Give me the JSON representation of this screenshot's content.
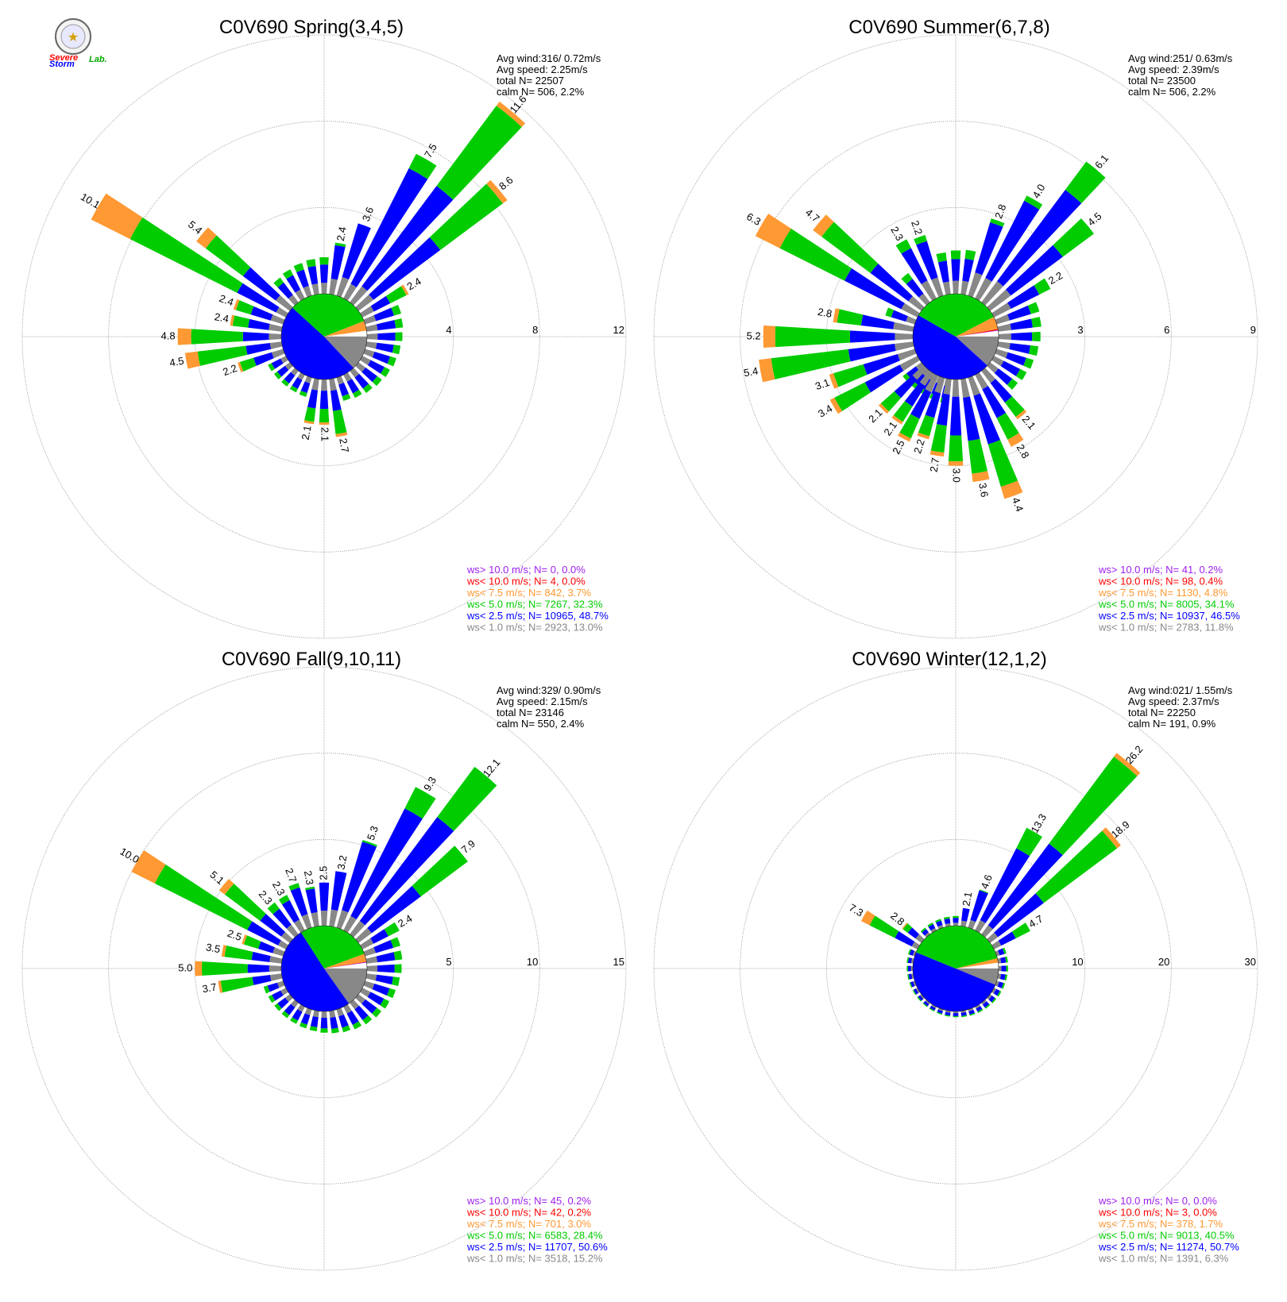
{
  "colors": {
    "over10": "#a020f0",
    "under10": "#ff0000",
    "under7_5": "#ff9933",
    "under5": "#00cc00",
    "under2_5": "#0000ff",
    "under1": "#888888"
  },
  "logo": {
    "text_a": "Severe",
    "text_b": "Storm",
    "text_c": "Lab."
  },
  "chart_data": [
    {
      "type": "rose",
      "title": "C0V690 Spring(3,4,5)",
      "stats": [
        "Avg wind:316/ 0.72m/s",
        "Avg speed: 2.25m/s",
        "total N=      22507",
        "calm N=    506,   2.2%"
      ],
      "rmax": 12,
      "ticks": [
        "4",
        "8",
        "12"
      ],
      "pie": [
        13.0,
        48.7,
        32.3,
        3.7,
        0.0,
        0.0
      ],
      "bars": [
        {
          "dir": 20,
          "v": 3.6,
          "label": "3.6",
          "frac": [
            0.25,
            0.72,
            0.0,
            0.0
          ]
        },
        {
          "dir": 30,
          "v": 7.5,
          "label": "7.5",
          "frac": [
            0.1,
            0.8,
            0.1,
            0.0
          ]
        },
        {
          "dir": 40,
          "v": 11.6,
          "label": "11.6",
          "frac": [
            0.08,
            0.5,
            0.4,
            0.02
          ]
        },
        {
          "dir": 50,
          "v": 8.6,
          "label": "8.6",
          "frac": [
            0.1,
            0.45,
            0.42,
            0.03
          ]
        },
        {
          "dir": 60,
          "v": 2.4,
          "label": "2.4",
          "frac": [
            0.25,
            0.35,
            0.35,
            0.05
          ]
        },
        {
          "dir": 10,
          "v": 2.4,
          "label": "2.4",
          "frac": [
            0.3,
            0.65,
            0.05,
            0.0
          ]
        },
        {
          "dir": 300,
          "v": 10.1,
          "label": "10.1",
          "frac": [
            0.05,
            0.2,
            0.55,
            0.2
          ]
        },
        {
          "dir": 310,
          "v": 5.4,
          "label": "5.4",
          "frac": [
            0.15,
            0.35,
            0.4,
            0.1
          ]
        },
        {
          "dir": 290,
          "v": 2.4,
          "label": "2.4",
          "frac": [
            0.25,
            0.4,
            0.3,
            0.05
          ]
        },
        {
          "dir": 280,
          "v": 2.4,
          "label": "2.4",
          "frac": [
            0.25,
            0.4,
            0.3,
            0.05
          ]
        },
        {
          "dir": 270,
          "v": 4.8,
          "label": "4.8",
          "frac": [
            0.12,
            0.25,
            0.5,
            0.13
          ]
        },
        {
          "dir": 260,
          "v": 4.5,
          "label": "4.5",
          "frac": [
            0.12,
            0.25,
            0.5,
            0.13
          ]
        },
        {
          "dir": 250,
          "v": 2.2,
          "label": "2.2",
          "frac": [
            0.25,
            0.4,
            0.3,
            0.05
          ]
        },
        {
          "dir": 190,
          "v": 2.1,
          "label": "2.1",
          "frac": [
            0.25,
            0.4,
            0.3,
            0.05
          ]
        },
        {
          "dir": 180,
          "v": 2.1,
          "label": "2.1",
          "frac": [
            0.25,
            0.4,
            0.3,
            0.05
          ]
        },
        {
          "dir": 170,
          "v": 2.7,
          "label": "2.7",
          "frac": [
            0.2,
            0.35,
            0.4,
            0.05
          ]
        }
      ],
      "small": 1.8,
      "legend": [
        "ws> 10.0 m/s; N=      0,  0.0%",
        "ws< 10.0 m/s; N=      4,  0.0%",
        "ws<  7.5 m/s; N=   842,  3.7%",
        "ws<  5.0 m/s; N=  7267, 32.3%",
        "ws<  2.5 m/s; N= 10965, 48.7%",
        "ws<  1.0 m/s; N=  2923, 13.0%"
      ]
    },
    {
      "type": "rose",
      "title": "C0V690 Summer(6,7,8)",
      "stats": [
        "Avg wind:251/ 0.63m/s",
        "Avg speed: 2.39m/s",
        "total N=      23500",
        "calm N=    506,   2.2%"
      ],
      "rmax": 9,
      "ticks": [
        "3",
        "6",
        "9"
      ],
      "pie": [
        11.8,
        46.5,
        34.1,
        4.8,
        0.4,
        0.2
      ],
      "bars": [
        {
          "dir": 20,
          "v": 2.8,
          "label": "2.8",
          "frac": [
            0.3,
            0.65,
            0.05,
            0.0
          ]
        },
        {
          "dir": 30,
          "v": 4.0,
          "label": "4.0",
          "frac": [
            0.2,
            0.75,
            0.05,
            0.0
          ]
        },
        {
          "dir": 40,
          "v": 6.1,
          "label": "6.1",
          "frac": [
            0.15,
            0.65,
            0.2,
            0.0
          ]
        },
        {
          "dir": 50,
          "v": 4.5,
          "label": "4.5",
          "frac": [
            0.2,
            0.5,
            0.3,
            0.0
          ]
        },
        {
          "dir": 60,
          "v": 2.2,
          "label": "2.2",
          "frac": [
            0.3,
            0.5,
            0.2,
            0.0
          ]
        },
        {
          "dir": 330,
          "v": 2.3,
          "label": "2.3",
          "frac": [
            0.3,
            0.55,
            0.15,
            0.0
          ]
        },
        {
          "dir": 340,
          "v": 2.2,
          "label": "2.2",
          "frac": [
            0.3,
            0.6,
            0.1,
            0.0
          ]
        },
        {
          "dir": 300,
          "v": 6.3,
          "label": "6.3",
          "frac": [
            0.1,
            0.35,
            0.4,
            0.15
          ]
        },
        {
          "dir": 310,
          "v": 4.7,
          "label": "4.7",
          "frac": [
            0.12,
            0.35,
            0.45,
            0.08
          ]
        },
        {
          "dir": 280,
          "v": 2.8,
          "label": "2.8",
          "frac": [
            0.25,
            0.4,
            0.3,
            0.05
          ]
        },
        {
          "dir": 270,
          "v": 5.2,
          "label": "5.2",
          "frac": [
            0.12,
            0.3,
            0.5,
            0.08
          ]
        },
        {
          "dir": 260,
          "v": 5.4,
          "label": "5.4",
          "frac": [
            0.12,
            0.3,
            0.5,
            0.08
          ]
        },
        {
          "dir": 250,
          "v": 3.1,
          "label": "3.1",
          "frac": [
            0.2,
            0.4,
            0.35,
            0.05
          ]
        },
        {
          "dir": 240,
          "v": 3.4,
          "label": "3.4",
          "frac": [
            0.2,
            0.4,
            0.35,
            0.05
          ]
        },
        {
          "dir": 225,
          "v": 2.1,
          "label": "2.1",
          "frac": [
            0.25,
            0.4,
            0.3,
            0.05
          ]
        },
        {
          "dir": 215,
          "v": 2.1,
          "label": "2.1",
          "frac": [
            0.25,
            0.4,
            0.3,
            0.05
          ]
        },
        {
          "dir": 207,
          "v": 2.5,
          "label": "2.5",
          "frac": [
            0.25,
            0.4,
            0.3,
            0.05
          ]
        },
        {
          "dir": 198,
          "v": 2.2,
          "label": "2.2",
          "frac": [
            0.25,
            0.4,
            0.3,
            0.05
          ]
        },
        {
          "dir": 189,
          "v": 2.7,
          "label": "2.7",
          "frac": [
            0.2,
            0.4,
            0.35,
            0.05
          ]
        },
        {
          "dir": 180,
          "v": 3.0,
          "label": "3.0",
          "frac": [
            0.2,
            0.45,
            0.3,
            0.05
          ]
        },
        {
          "dir": 170,
          "v": 3.6,
          "label": "3.6",
          "frac": [
            0.18,
            0.42,
            0.32,
            0.08
          ]
        },
        {
          "dir": 160,
          "v": 4.4,
          "label": "4.4",
          "frac": [
            0.15,
            0.4,
            0.35,
            0.1
          ]
        },
        {
          "dir": 150,
          "v": 2.8,
          "label": "2.8",
          "frac": [
            0.2,
            0.4,
            0.3,
            0.1
          ]
        },
        {
          "dir": 140,
          "v": 2.1,
          "label": "2.1",
          "frac": [
            0.25,
            0.4,
            0.3,
            0.05
          ]
        }
      ],
      "small": 1.6,
      "legend": [
        "ws> 10.0 m/s; N=     41,  0.2%",
        "ws< 10.0 m/s; N=     98,  0.4%",
        "ws<  7.5 m/s; N=  1130,  4.8%",
        "ws<  5.0 m/s; N=  8005, 34.1%",
        "ws<  2.5 m/s; N= 10937, 46.5%",
        "ws<  1.0 m/s; N=  2783, 11.8%"
      ]
    },
    {
      "type": "rose",
      "title": "C0V690 Fall(9,10,11)",
      "stats": [
        "Avg wind:329/ 0.90m/s",
        "Avg speed: 2.15m/s",
        "total N=      23146",
        "calm N=    550,   2.4%"
      ],
      "rmax": 15,
      "ticks": [
        "5",
        "10",
        "15"
      ],
      "pie": [
        15.2,
        50.6,
        28.4,
        3.0,
        0.2,
        0.2
      ],
      "bars": [
        {
          "dir": 10,
          "v": 3.2,
          "label": "3.2",
          "frac": [
            0.3,
            0.7,
            0.0,
            0.0
          ]
        },
        {
          "dir": 20,
          "v": 5.3,
          "label": "5.3",
          "frac": [
            0.2,
            0.78,
            0.02,
            0.0
          ]
        },
        {
          "dir": 30,
          "v": 9.3,
          "label": "9.3",
          "frac": [
            0.1,
            0.75,
            0.15,
            0.0
          ]
        },
        {
          "dir": 40,
          "v": 12.1,
          "label": "12.1",
          "frac": [
            0.08,
            0.62,
            0.3,
            0.0
          ]
        },
        {
          "dir": 50,
          "v": 7.9,
          "label": "7.9",
          "frac": [
            0.12,
            0.45,
            0.43,
            0.0
          ]
        },
        {
          "dir": 60,
          "v": 2.4,
          "label": "2.4",
          "frac": [
            0.3,
            0.4,
            0.3,
            0.0
          ]
        },
        {
          "dir": 0,
          "v": 2.5,
          "label": "2.5",
          "frac": [
            0.35,
            0.65,
            0.0,
            0.0
          ]
        },
        {
          "dir": 350,
          "v": 2.3,
          "label": "2.3",
          "frac": [
            0.35,
            0.6,
            0.05,
            0.0
          ]
        },
        {
          "dir": 340,
          "v": 2.7,
          "label": "2.7",
          "frac": [
            0.3,
            0.6,
            0.1,
            0.0
          ]
        },
        {
          "dir": 330,
          "v": 2.3,
          "label": "2.3",
          "frac": [
            0.3,
            0.55,
            0.15,
            0.0
          ]
        },
        {
          "dir": 320,
          "v": 2.3,
          "label": "2.3",
          "frac": [
            0.3,
            0.5,
            0.2,
            0.0
          ]
        },
        {
          "dir": 300,
          "v": 10.0,
          "label": "10.0",
          "frac": [
            0.05,
            0.2,
            0.6,
            0.15
          ]
        },
        {
          "dir": 310,
          "v": 5.1,
          "label": "5.1",
          "frac": [
            0.12,
            0.3,
            0.5,
            0.08
          ]
        },
        {
          "dir": 290,
          "v": 2.5,
          "label": "2.5",
          "frac": [
            0.25,
            0.35,
            0.35,
            0.05
          ]
        },
        {
          "dir": 280,
          "v": 3.5,
          "label": "3.5",
          "frac": [
            0.2,
            0.3,
            0.45,
            0.05
          ]
        },
        {
          "dir": 270,
          "v": 5.0,
          "label": "5.0",
          "frac": [
            0.14,
            0.25,
            0.53,
            0.08
          ]
        },
        {
          "dir": 260,
          "v": 3.7,
          "label": "3.7",
          "frac": [
            0.18,
            0.28,
            0.5,
            0.04
          ]
        }
      ],
      "small": 2.2,
      "legend": [
        "ws> 10.0 m/s; N=     45,  0.2%",
        "ws< 10.0 m/s; N=     42,  0.2%",
        "ws<  7.5 m/s; N=   701,  3.0%",
        "ws<  5.0 m/s; N=  6583, 28.4%",
        "ws<  2.5 m/s; N= 11707, 50.6%",
        "ws<  1.0 m/s; N=  3518, 15.2%"
      ]
    },
    {
      "type": "rose",
      "title": "C0V690 Winter(12,1,2)",
      "stats": [
        "Avg wind:021/ 1.55m/s",
        "Avg speed: 2.37m/s",
        "total N=      22250",
        "calm N=    191,   0.9%"
      ],
      "rmax": 30,
      "ticks": [
        "10",
        "20",
        "30"
      ],
      "pie": [
        6.3,
        50.7,
        40.5,
        1.7,
        0.0,
        0.0
      ],
      "bars": [
        {
          "dir": 10,
          "v": 2.1,
          "label": "2.1",
          "frac": [
            0.3,
            0.7,
            0.0,
            0.0
          ]
        },
        {
          "dir": 20,
          "v": 4.6,
          "label": "4.6",
          "frac": [
            0.2,
            0.78,
            0.02,
            0.0
          ]
        },
        {
          "dir": 30,
          "v": 13.3,
          "label": "13.3",
          "frac": [
            0.1,
            0.7,
            0.2,
            0.0
          ]
        },
        {
          "dir": 40,
          "v": 26.2,
          "label": "26.2",
          "frac": [
            0.05,
            0.45,
            0.48,
            0.02
          ]
        },
        {
          "dir": 50,
          "v": 18.9,
          "label": "18.9",
          "frac": [
            0.06,
            0.35,
            0.56,
            0.03
          ]
        },
        {
          "dir": 60,
          "v": 4.7,
          "label": "4.7",
          "frac": [
            0.2,
            0.4,
            0.4,
            0.0
          ]
        },
        {
          "dir": 300,
          "v": 7.3,
          "label": "7.3",
          "frac": [
            0.1,
            0.3,
            0.45,
            0.15
          ]
        },
        {
          "dir": 310,
          "v": 2.8,
          "label": "2.8",
          "frac": [
            0.3,
            0.4,
            0.25,
            0.05
          ]
        }
      ],
      "small": 1.2,
      "legend": [
        "ws> 10.0 m/s; N=      0,  0.0%",
        "ws< 10.0 m/s; N=      3,  0.0%",
        "ws<  7.5 m/s; N=   378,  1.7%",
        "ws<  5.0 m/s; N=  9013, 40.5%",
        "ws<  2.5 m/s; N= 11274, 50.7%",
        "ws<  1.0 m/s; N=  1391,  6.3%"
      ]
    }
  ]
}
